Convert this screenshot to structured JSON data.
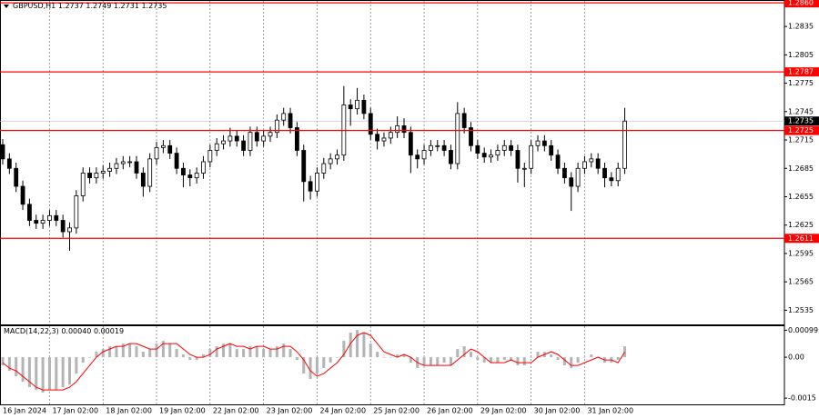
{
  "chart_data": [
    {
      "type": "candlestick",
      "symbol": "GBPUSD,H1",
      "last_bar": [
        1.2737,
        1.2749,
        1.2731,
        1.2735
      ],
      "categories": [
        "16 Jan 2024",
        null,
        null,
        null,
        null,
        null,
        null,
        "17 Jan 02:00",
        null,
        null,
        null,
        null,
        null,
        null,
        null,
        "18 Jan 02:00",
        null,
        null,
        null,
        null,
        null,
        null,
        null,
        "19 Jan 02:00",
        null,
        null,
        null,
        null,
        null,
        null,
        null,
        "22 Jan 02:00",
        null,
        null,
        null,
        null,
        null,
        null,
        null,
        "23 Jan 02:00",
        null,
        null,
        null,
        null,
        null,
        null,
        null,
        "24 Jan 02:00",
        null,
        null,
        null,
        null,
        null,
        null,
        null,
        "25 Jan 02:00",
        null,
        null,
        null,
        null,
        null,
        null,
        null,
        "26 Jan 02:00",
        null,
        null,
        null,
        null,
        null,
        null,
        null,
        "29 Jan 02:00",
        null,
        null,
        null,
        null,
        null,
        null,
        null,
        "30 Jan 02:00",
        null,
        null,
        null,
        null,
        null,
        null,
        null,
        "31 Jan 02:00",
        null,
        null,
        null,
        null,
        null,
        null
      ],
      "open": [
        1.271,
        1.2695,
        1.2685,
        1.2666,
        1.2647,
        1.263,
        1.2627,
        1.263,
        1.2635,
        1.263,
        1.2618,
        1.2622,
        1.2656,
        1.268,
        1.2675,
        1.268,
        1.2682,
        1.2685,
        1.269,
        1.2692,
        1.2692,
        1.268,
        1.2666,
        1.2695,
        1.2707,
        1.2709,
        1.2701,
        1.2685,
        1.2678,
        1.2675,
        1.268,
        1.2692,
        1.2704,
        1.2711,
        1.2714,
        1.2719,
        1.2714,
        1.2704,
        1.2723,
        1.2714,
        1.2719,
        1.2723,
        1.2736,
        1.2743,
        1.2728,
        1.2704,
        1.2671,
        1.2661,
        1.268,
        1.269,
        1.2695,
        1.2699,
        1.2752,
        1.2748,
        1.2757,
        1.2743,
        1.2721,
        1.2714,
        1.2717,
        1.2723,
        1.273,
        1.2723,
        1.2699,
        1.2695,
        1.2704,
        1.2709,
        1.2709,
        1.2704,
        1.269,
        1.2743,
        1.2728,
        1.2709,
        1.2701,
        1.2697,
        1.2699,
        1.2704,
        1.2709,
        1.2704,
        1.2685,
        1.2685,
        1.2709,
        1.2714,
        1.2709,
        1.2699,
        1.2685,
        1.2675,
        1.2666,
        1.2685,
        1.2692,
        1.2695,
        1.2685,
        1.2675,
        1.2672,
        1.2685
      ],
      "high": [
        1.2716,
        1.2701,
        1.2691,
        1.2672,
        1.2653,
        1.2636,
        1.2636,
        1.2641,
        1.2641,
        1.2636,
        1.2628,
        1.2662,
        1.2686,
        1.2686,
        1.2686,
        1.2688,
        1.2691,
        1.2696,
        1.2698,
        1.2698,
        1.2698,
        1.2686,
        1.2701,
        1.2713,
        1.2715,
        1.2715,
        1.2707,
        1.2691,
        1.2684,
        1.2686,
        1.2698,
        1.271,
        1.2717,
        1.272,
        1.2728,
        1.2725,
        1.272,
        1.2729,
        1.2729,
        1.2725,
        1.2729,
        1.2742,
        1.2749,
        1.2749,
        1.2734,
        1.271,
        1.2677,
        1.2686,
        1.2696,
        1.2701,
        1.2705,
        1.2772,
        1.2758,
        1.277,
        1.2763,
        1.2749,
        1.2727,
        1.2723,
        1.2729,
        1.274,
        1.2738,
        1.2729,
        1.2705,
        1.271,
        1.2715,
        1.2715,
        1.2715,
        1.271,
        1.2755,
        1.2749,
        1.2734,
        1.2715,
        1.2707,
        1.2705,
        1.271,
        1.2715,
        1.2715,
        1.271,
        1.2691,
        1.2715,
        1.272,
        1.272,
        1.2715,
        1.2705,
        1.2691,
        1.2681,
        1.2691,
        1.2698,
        1.2701,
        1.2701,
        1.2691,
        1.2681,
        1.2691,
        1.2749
      ],
      "low": [
        1.2689,
        1.2679,
        1.266,
        1.2641,
        1.2624,
        1.2621,
        1.2621,
        1.2624,
        1.2624,
        1.2612,
        1.2598,
        1.2616,
        1.265,
        1.2669,
        1.2669,
        1.2674,
        1.2676,
        1.2679,
        1.2684,
        1.2686,
        1.2674,
        1.2655,
        1.266,
        1.2689,
        1.2701,
        1.2695,
        1.2679,
        1.2665,
        1.2666,
        1.2669,
        1.2674,
        1.2686,
        1.2698,
        1.2705,
        1.2708,
        1.2708,
        1.2698,
        1.2698,
        1.2708,
        1.2708,
        1.2713,
        1.2717,
        1.273,
        1.2722,
        1.2698,
        1.265,
        1.2652,
        1.2655,
        1.2674,
        1.2684,
        1.2689,
        1.2693,
        1.273,
        1.2742,
        1.2737,
        1.2715,
        1.2705,
        1.2708,
        1.2711,
        1.2717,
        1.2717,
        1.268,
        1.2685,
        1.2689,
        1.2698,
        1.2703,
        1.2698,
        1.2684,
        1.2684,
        1.2722,
        1.2703,
        1.2695,
        1.2691,
        1.2691,
        1.2693,
        1.2698,
        1.2698,
        1.267,
        1.2665,
        1.2679,
        1.2703,
        1.2703,
        1.2693,
        1.2679,
        1.2669,
        1.264,
        1.266,
        1.2679,
        1.2686,
        1.2679,
        1.2665,
        1.2666,
        1.2666,
        1.2679
      ],
      "close": [
        1.2695,
        1.2685,
        1.2666,
        1.2647,
        1.263,
        1.2627,
        1.263,
        1.2635,
        1.263,
        1.2618,
        1.2622,
        1.2656,
        1.268,
        1.2675,
        1.268,
        1.2682,
        1.2685,
        1.269,
        1.2692,
        1.2692,
        1.268,
        1.2666,
        1.2695,
        1.2707,
        1.2709,
        1.2701,
        1.2685,
        1.2678,
        1.2675,
        1.268,
        1.2692,
        1.2704,
        1.2711,
        1.2714,
        1.2719,
        1.2714,
        1.2704,
        1.2723,
        1.2714,
        1.2719,
        1.2723,
        1.2736,
        1.2743,
        1.2728,
        1.2704,
        1.2671,
        1.2661,
        1.268,
        1.269,
        1.2695,
        1.2699,
        1.2752,
        1.2748,
        1.2757,
        1.2743,
        1.2721,
        1.2714,
        1.2717,
        1.2723,
        1.273,
        1.2723,
        1.2699,
        1.2695,
        1.2704,
        1.2709,
        1.2709,
        1.2704,
        1.269,
        1.2743,
        1.2728,
        1.2709,
        1.2701,
        1.2697,
        1.2699,
        1.2704,
        1.2709,
        1.2704,
        1.2685,
        1.2685,
        1.2709,
        1.2714,
        1.2709,
        1.2699,
        1.2685,
        1.2675,
        1.2666,
        1.2685,
        1.2692,
        1.2695,
        1.2685,
        1.2675,
        1.2672,
        1.2685,
        1.2735
      ],
      "colors": {
        "up": "#ffffff",
        "down": "#000000",
        "wick": "#000000"
      },
      "ylim": [
        1.252,
        1.2863
      ],
      "yticks": [
        1.2535,
        1.2565,
        1.2595,
        1.2625,
        1.2655,
        1.2685,
        1.2715,
        1.2745,
        1.2775,
        1.2805,
        1.2835
      ],
      "levels": [
        {
          "value": 1.286,
          "label": "1.2860"
        },
        1.2787,
        1.2725,
        1.2611
      ],
      "level_color": "#ff0000",
      "current_price": 1.2735,
      "grid": true
    },
    {
      "type": "bar",
      "title": "MACD(14,22,3)",
      "readout": [
        {
          "value": 0.0004,
          "label": "0.00040"
        },
        0.00019
      ],
      "series": [
        {
          "color": "#b4b4b4",
          "values": [
            -0.0003,
            -0.0005,
            -0.0007,
            -0.0009,
            -0.0011,
            -0.0012,
            -0.0013,
            -0.0012,
            -0.0012,
            -0.0011,
            -0.001,
            -0.0006,
            -0.0002,
            0.0,
            0.0002,
            0.0003,
            0.0004,
            0.0004,
            0.0005,
            0.0005,
            0.0004,
            0.0002,
            0.0003,
            0.0005,
            0.0006,
            0.0005,
            0.0003,
            0.0001,
            -0.0001,
            -0.0001,
            0.0001,
            0.0003,
            0.0004,
            0.0005,
            0.0005,
            0.0003,
            0.0003,
            0.0004,
            0.0004,
            0.0003,
            0.0003,
            0.0004,
            0.0005,
            0.0003,
            -0.0001,
            -0.0006,
            -0.0008,
            -0.0006,
            -0.0004,
            -0.0002,
            0.0,
            0.0006,
            0.0009,
            0.001,
            0.0009,
            0.0005,
            0.0002,
            0.0,
            0.0,
            0.0001,
            0.0001,
            -0.0002,
            -0.0004,
            -0.0003,
            -0.0003,
            -0.0003,
            -0.0002,
            -0.0003,
            0.0003,
            0.0004,
            0.0002,
            -0.0001,
            -0.0002,
            -0.0002,
            -0.0002,
            -0.0001,
            -0.0001,
            -0.0003,
            -0.0003,
            0.0,
            0.0002,
            0.0002,
            0.0001,
            -0.0001,
            -0.0003,
            -0.0004,
            -0.0002,
            0.0,
            0.0001,
            0.0,
            -0.0002,
            -0.0002,
            -0.0001,
            0.0004
          ]
        },
        {
          "type": "line",
          "color": "#ff0000",
          "values": [
            -0.0002,
            -0.0004,
            -0.0005,
            -0.0007,
            -0.0009,
            -0.0011,
            -0.0012,
            -0.0012,
            -0.0012,
            -0.0012,
            -0.0011,
            -0.0009,
            -0.0006,
            -0.0003,
            0.0,
            0.0002,
            0.0003,
            0.0004,
            0.0004,
            0.0005,
            0.0005,
            0.0004,
            0.0003,
            0.0003,
            0.0005,
            0.0005,
            0.0005,
            0.0003,
            0.0001,
            0.0,
            0.0,
            0.0001,
            0.0003,
            0.0004,
            0.0005,
            0.0004,
            0.0004,
            0.0003,
            0.0004,
            0.0004,
            0.0003,
            0.0003,
            0.0004,
            0.0004,
            0.0002,
            -0.0001,
            -0.0005,
            -0.0007,
            -0.0006,
            -0.0004,
            -0.0002,
            0.0001,
            0.0005,
            0.0008,
            0.0009,
            0.0008,
            0.0005,
            0.0002,
            0.0001,
            0.0,
            0.0001,
            0.0,
            -0.0002,
            -0.0003,
            -0.0003,
            -0.0003,
            -0.0003,
            -0.0003,
            -0.0001,
            0.0001,
            0.0003,
            0.0002,
            0.0,
            -0.0002,
            -0.0002,
            -0.0002,
            -0.0001,
            -0.0002,
            -0.0002,
            -0.0002,
            0.0,
            0.0001,
            0.0002,
            0.0001,
            -0.0001,
            -0.0003,
            -0.0003,
            -0.0002,
            -0.0001,
            0.0,
            -0.0001,
            -0.0001,
            -0.0002,
            0.00019
          ]
        }
      ],
      "ylim": [
        -0.00173,
        0.00117
      ],
      "yticks": [
        0.00099,
        {
          "value": 0,
          "label": "0.00"
        },
        -0.0015
      ]
    }
  ]
}
